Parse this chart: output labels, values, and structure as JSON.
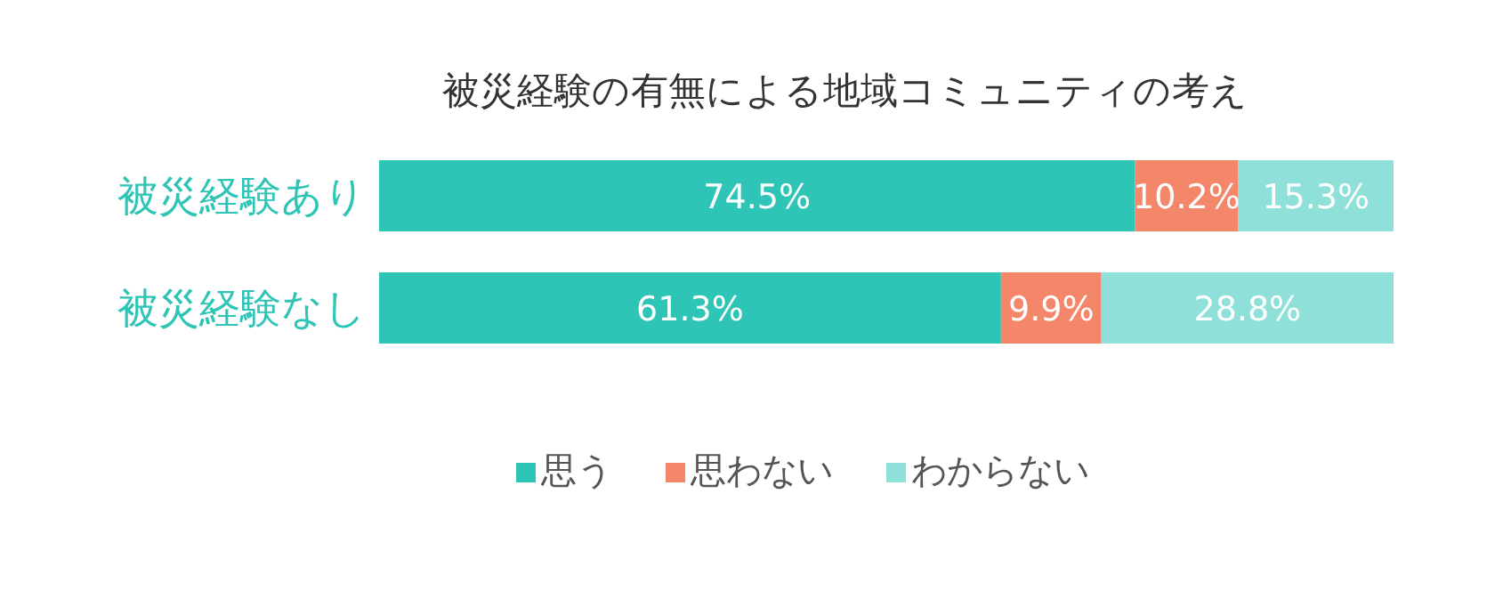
{
  "chart_data": {
    "type": "bar",
    "title": "被災経験の有無による地域コミュニティの考え",
    "orientation": "horizontal",
    "stacked": true,
    "categories": [
      "被災経験あり",
      "被災経験なし"
    ],
    "legend": "bottom",
    "series": [
      {
        "name": "思う",
        "color": "#2ec4b6",
        "values": [
          74.5,
          61.3
        ],
        "value_labels": [
          "74.5%",
          "61.3%"
        ]
      },
      {
        "name": "思わない",
        "color": "#f4866a",
        "values": [
          10.2,
          9.9
        ],
        "value_labels": [
          "10.2%",
          "9.9%"
        ]
      },
      {
        "name": "わからない",
        "color": "#8ee0d9",
        "values": [
          15.3,
          28.8
        ],
        "value_labels": [
          "15.3%",
          "28.8%"
        ]
      }
    ]
  }
}
